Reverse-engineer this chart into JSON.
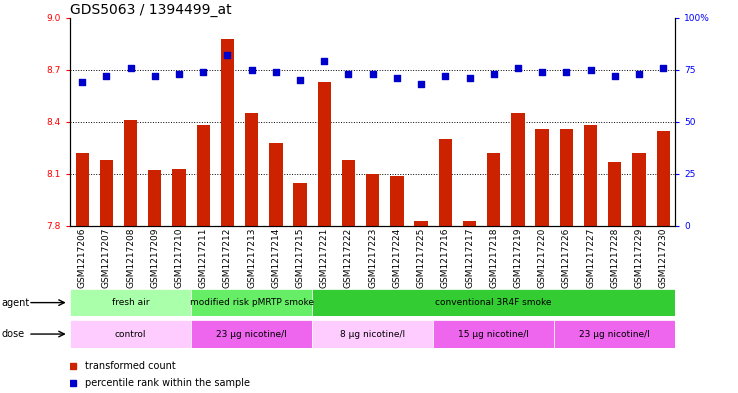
{
  "title": "GDS5063 / 1394499_at",
  "samples": [
    "GSM1217206",
    "GSM1217207",
    "GSM1217208",
    "GSM1217209",
    "GSM1217210",
    "GSM1217211",
    "GSM1217212",
    "GSM1217213",
    "GSM1217214",
    "GSM1217215",
    "GSM1217221",
    "GSM1217222",
    "GSM1217223",
    "GSM1217224",
    "GSM1217225",
    "GSM1217216",
    "GSM1217217",
    "GSM1217218",
    "GSM1217219",
    "GSM1217220",
    "GSM1217226",
    "GSM1217227",
    "GSM1217228",
    "GSM1217229",
    "GSM1217230"
  ],
  "bar_values": [
    8.22,
    8.18,
    8.41,
    8.12,
    8.13,
    8.38,
    8.88,
    8.45,
    8.28,
    8.05,
    8.63,
    8.18,
    8.1,
    8.09,
    7.83,
    8.3,
    7.83,
    8.22,
    8.45,
    8.36,
    8.36,
    8.38,
    8.17,
    8.22,
    8.35
  ],
  "blue_dot_values": [
    69,
    72,
    76,
    72,
    73,
    74,
    82,
    75,
    74,
    70,
    79,
    73,
    73,
    71,
    68,
    72,
    71,
    73,
    76,
    74,
    74,
    75,
    72,
    73,
    76
  ],
  "bar_color": "#CC2200",
  "dot_color": "#0000CC",
  "ylim_left": [
    7.8,
    9.0
  ],
  "ylim_right": [
    0,
    100
  ],
  "yticks_left": [
    7.8,
    8.1,
    8.4,
    8.7,
    9.0
  ],
  "yticks_right": [
    0,
    25,
    50,
    75,
    100
  ],
  "hlines": [
    8.1,
    8.4,
    8.7
  ],
  "agent_groups": [
    {
      "label": "fresh air",
      "start": 0,
      "end": 5,
      "color": "#AAFFAA"
    },
    {
      "label": "modified risk pMRTP smoke",
      "start": 5,
      "end": 10,
      "color": "#66EE66"
    },
    {
      "label": "conventional 3R4F smoke",
      "start": 10,
      "end": 25,
      "color": "#33CC33"
    }
  ],
  "dose_groups": [
    {
      "label": "control",
      "start": 0,
      "end": 5,
      "color": "#FFCCFF"
    },
    {
      "label": "23 μg nicotine/l",
      "start": 5,
      "end": 10,
      "color": "#EE66EE"
    },
    {
      "label": "8 μg nicotine/l",
      "start": 10,
      "end": 15,
      "color": "#FFCCFF"
    },
    {
      "label": "15 μg nicotine/l",
      "start": 15,
      "end": 20,
      "color": "#EE66EE"
    },
    {
      "label": "23 μg nicotine/l",
      "start": 20,
      "end": 25,
      "color": "#EE66EE"
    }
  ],
  "legend_items": [
    {
      "label": "transformed count",
      "color": "#CC2200"
    },
    {
      "label": "percentile rank within the sample",
      "color": "#0000CC"
    }
  ],
  "title_fontsize": 10,
  "tick_fontsize": 6.5,
  "annot_fontsize": 7,
  "legend_fontsize": 7
}
